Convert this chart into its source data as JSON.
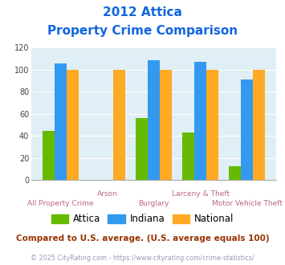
{
  "title_line1": "2012 Attica",
  "title_line2": "Property Crime Comparison",
  "categories": [
    "All Property Crime",
    "Arson",
    "Burglary",
    "Larceny & Theft",
    "Motor Vehicle Theft"
  ],
  "top_labels": [
    "",
    "Arson",
    "",
    "Larceny & Theft",
    ""
  ],
  "bottom_labels": [
    "All Property Crime",
    "",
    "Burglary",
    "",
    "Motor Vehicle Theft"
  ],
  "attica": [
    45,
    0,
    56,
    43,
    13
  ],
  "indiana": [
    106,
    0,
    109,
    107,
    91
  ],
  "national": [
    100,
    100,
    100,
    100,
    100
  ],
  "attica_color": "#66bb00",
  "indiana_color": "#3399ee",
  "national_color": "#ffaa22",
  "ylim": [
    0,
    120
  ],
  "yticks": [
    0,
    20,
    40,
    60,
    80,
    100,
    120
  ],
  "plot_bg": "#e0eef5",
  "title_color": "#1166dd",
  "xlabel_color": "#bb6688",
  "legend_label_attica": "Attica",
  "legend_label_indiana": "Indiana",
  "legend_label_national": "National",
  "footnote1": "Compared to U.S. average. (U.S. average equals 100)",
  "footnote2": "© 2025 CityRating.com - https://www.cityrating.com/crime-statistics/",
  "footnote1_color": "#993300",
  "footnote2_color": "#9999bb"
}
